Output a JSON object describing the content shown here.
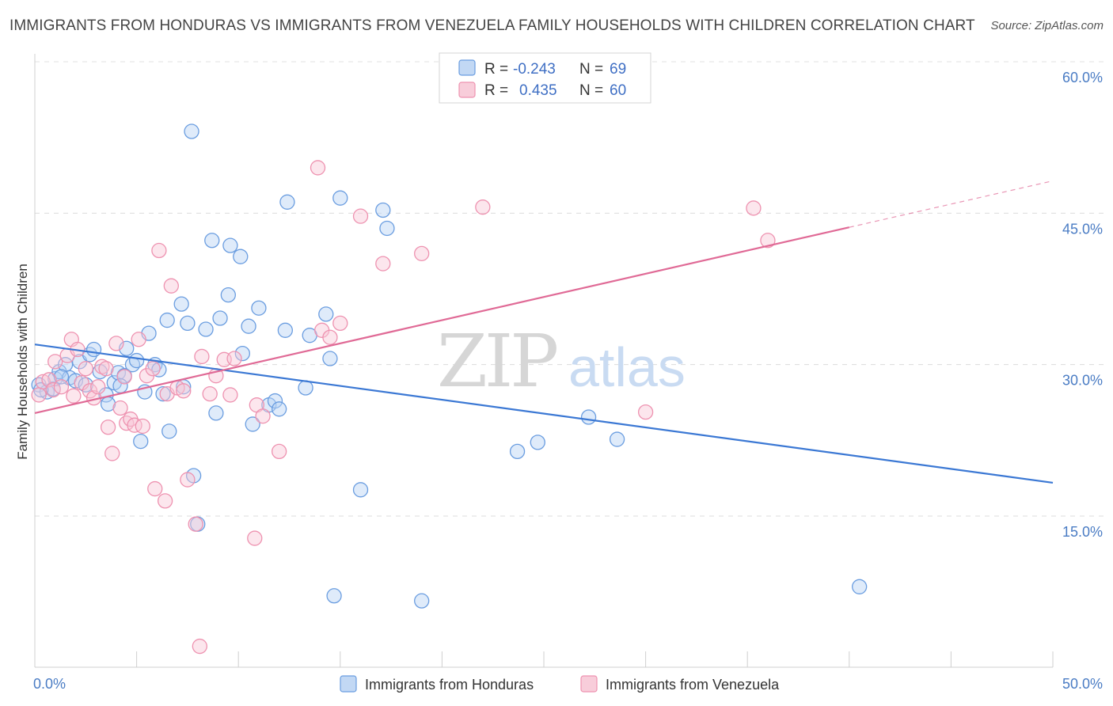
{
  "title": "IMMIGRANTS FROM HONDURAS VS IMMIGRANTS FROM VENEZUELA FAMILY HOUSEHOLDS WITH CHILDREN CORRELATION CHART",
  "source": "Source: ZipAtlas.com",
  "watermark": {
    "zip": "ZIP",
    "atlas": "atlas"
  },
  "legend": {
    "r_label": "R =",
    "n_label": "N =",
    "rows": [
      {
        "r": "-0.243",
        "n": "69",
        "color": "#a8c8f0"
      },
      {
        "r": "0.435",
        "n": "60",
        "color": "#f5b8cb"
      }
    ]
  },
  "chart_data": {
    "type": "scatter",
    "ylabel": "Family Households with Children",
    "x_tick_labels": [
      "0.0%",
      "50.0%"
    ],
    "y_tick_labels": [
      "15.0%",
      "30.0%",
      "45.0%",
      "60.0%"
    ],
    "xlim": [
      0,
      50
    ],
    "ylim": [
      0,
      60
    ],
    "y_ticks": [
      15,
      30,
      45,
      60
    ],
    "grid": true,
    "legend_position": "bottom",
    "series": [
      {
        "name": "Immigrants from Honduras",
        "color": "#6a9de0",
        "fill": "#b9d3f3",
        "trend": {
          "x": [
            0,
            50
          ],
          "y": [
            32.0,
            18.3
          ],
          "color": "#3b78d4"
        },
        "points": [
          [
            0.2,
            28.0
          ],
          [
            0.6,
            27.3
          ],
          [
            0.9,
            27.6
          ],
          [
            1.0,
            28.6
          ],
          [
            1.2,
            29.3
          ],
          [
            1.5,
            30.0
          ],
          [
            1.7,
            28.7
          ],
          [
            2.0,
            28.4
          ],
          [
            2.2,
            30.3
          ],
          [
            2.5,
            28.0
          ],
          [
            2.7,
            31.0
          ],
          [
            2.9,
            31.5
          ],
          [
            3.2,
            29.3
          ],
          [
            3.5,
            27.0
          ],
          [
            3.6,
            26.1
          ],
          [
            3.9,
            28.2
          ],
          [
            4.1,
            29.2
          ],
          [
            4.4,
            28.9
          ],
          [
            4.5,
            31.6
          ],
          [
            4.8,
            30.0
          ],
          [
            5.0,
            30.4
          ],
          [
            5.2,
            22.4
          ],
          [
            5.4,
            27.3
          ],
          [
            5.6,
            33.1
          ],
          [
            5.9,
            30.0
          ],
          [
            6.1,
            29.5
          ],
          [
            6.3,
            27.1
          ],
          [
            6.5,
            34.4
          ],
          [
            6.6,
            23.4
          ],
          [
            7.2,
            36.0
          ],
          [
            7.3,
            27.8
          ],
          [
            7.5,
            34.1
          ],
          [
            7.8,
            19.0
          ],
          [
            8.0,
            14.2
          ],
          [
            7.7,
            53.1
          ],
          [
            8.4,
            33.5
          ],
          [
            8.7,
            42.3
          ],
          [
            8.9,
            25.2
          ],
          [
            9.1,
            34.6
          ],
          [
            9.5,
            36.9
          ],
          [
            9.6,
            41.8
          ],
          [
            10.1,
            40.7
          ],
          [
            10.2,
            31.1
          ],
          [
            10.5,
            33.8
          ],
          [
            10.7,
            24.1
          ],
          [
            11.0,
            35.6
          ],
          [
            11.5,
            26.0
          ],
          [
            11.8,
            26.4
          ],
          [
            12.0,
            25.6
          ],
          [
            12.3,
            33.4
          ],
          [
            12.4,
            46.1
          ],
          [
            13.3,
            27.7
          ],
          [
            13.5,
            32.9
          ],
          [
            14.5,
            30.6
          ],
          [
            14.3,
            35.0
          ],
          [
            14.7,
            7.1
          ],
          [
            15.0,
            46.5
          ],
          [
            16.0,
            17.6
          ],
          [
            17.1,
            45.3
          ],
          [
            17.3,
            43.5
          ],
          [
            19.0,
            6.6
          ],
          [
            23.7,
            21.4
          ],
          [
            24.7,
            22.3
          ],
          [
            27.2,
            24.8
          ],
          [
            28.6,
            22.6
          ],
          [
            40.5,
            8.0
          ],
          [
            0.3,
            27.5
          ],
          [
            4.2,
            27.9
          ],
          [
            1.3,
            28.8
          ]
        ]
      },
      {
        "name": "Immigrants from Venezuela",
        "color": "#ee92b0",
        "fill": "#f8c7d6",
        "trend": {
          "x": [
            0,
            40
          ],
          "y": [
            25.2,
            43.6
          ],
          "color": "#e06a96"
        },
        "trend_dashed": {
          "x": [
            40,
            50
          ],
          "y": [
            43.6,
            48.2
          ]
        },
        "points": [
          [
            0.2,
            27.0
          ],
          [
            0.4,
            28.3
          ],
          [
            0.7,
            28.5
          ],
          [
            0.9,
            27.5
          ],
          [
            1.0,
            30.3
          ],
          [
            1.3,
            27.8
          ],
          [
            1.6,
            30.9
          ],
          [
            1.8,
            32.5
          ],
          [
            1.9,
            26.9
          ],
          [
            2.1,
            31.5
          ],
          [
            2.3,
            28.2
          ],
          [
            2.5,
            29.6
          ],
          [
            2.7,
            27.4
          ],
          [
            2.9,
            26.7
          ],
          [
            3.1,
            27.8
          ],
          [
            3.3,
            29.8
          ],
          [
            3.5,
            29.6
          ],
          [
            3.6,
            23.8
          ],
          [
            3.8,
            21.2
          ],
          [
            4.0,
            32.1
          ],
          [
            4.2,
            25.7
          ],
          [
            4.4,
            28.8
          ],
          [
            4.5,
            24.2
          ],
          [
            4.7,
            24.6
          ],
          [
            4.9,
            24.0
          ],
          [
            5.1,
            32.5
          ],
          [
            5.3,
            23.9
          ],
          [
            5.5,
            28.9
          ],
          [
            5.8,
            29.6
          ],
          [
            5.9,
            17.7
          ],
          [
            6.1,
            41.3
          ],
          [
            6.4,
            16.5
          ],
          [
            6.5,
            27.1
          ],
          [
            6.7,
            37.8
          ],
          [
            7.0,
            27.7
          ],
          [
            7.3,
            27.4
          ],
          [
            7.5,
            18.6
          ],
          [
            7.9,
            14.2
          ],
          [
            8.1,
            2.1
          ],
          [
            8.2,
            30.8
          ],
          [
            8.6,
            27.1
          ],
          [
            8.9,
            28.9
          ],
          [
            9.3,
            30.5
          ],
          [
            9.6,
            27.0
          ],
          [
            9.8,
            30.6
          ],
          [
            10.8,
            12.8
          ],
          [
            10.9,
            26.0
          ],
          [
            11.2,
            24.9
          ],
          [
            12.0,
            21.4
          ],
          [
            13.9,
            49.5
          ],
          [
            14.1,
            33.4
          ],
          [
            14.5,
            32.7
          ],
          [
            15.0,
            34.1
          ],
          [
            16.0,
            44.7
          ],
          [
            17.1,
            40.0
          ],
          [
            19.0,
            41.0
          ],
          [
            22.0,
            45.6
          ],
          [
            30.0,
            25.3
          ],
          [
            35.3,
            45.5
          ],
          [
            36.0,
            42.3
          ]
        ]
      }
    ]
  }
}
